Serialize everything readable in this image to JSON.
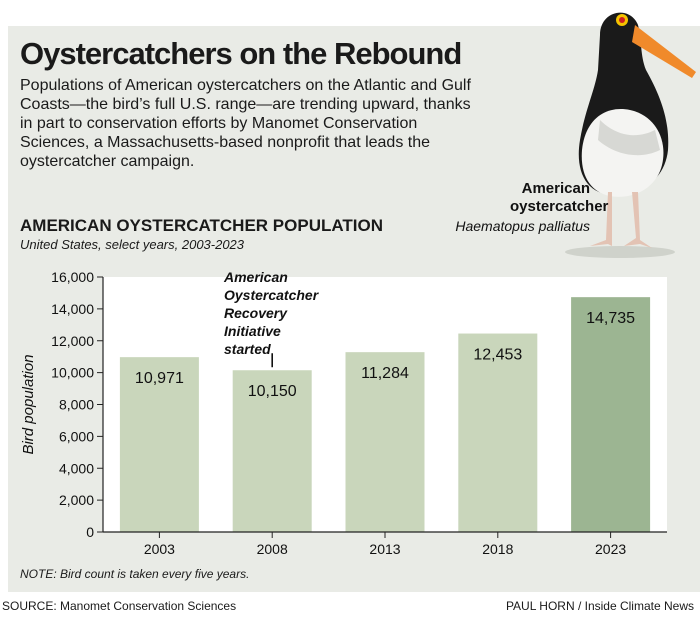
{
  "title": "Oystercatchers on the Rebound",
  "intro": "Populations of American oystercatchers on the Atlantic and Gulf Coasts—the bird’s full U.S. range—are trending upward, thanks in part to conservation efforts by Manomet Conservation Sciences, a Massachusetts-based nonprofit that leads the oystercatcher campaign.",
  "bird": {
    "common_name": "American oystercatcher",
    "scientific_name": "Haematopus palliatus"
  },
  "chart_data": {
    "type": "bar",
    "title": "AMERICAN OYSTERCATCHER POPULATION",
    "subtitle": "United States, select years, 2003-2023",
    "ylabel": "Bird population",
    "xlabel": "",
    "categories": [
      "2003",
      "2008",
      "2013",
      "2018",
      "2023"
    ],
    "values": [
      10971,
      10150,
      11284,
      12453,
      14735
    ],
    "value_labels": [
      "10,971",
      "10,150",
      "11,284",
      "12,453",
      "14,735"
    ],
    "ylim": [
      0,
      16000
    ],
    "yticks": [
      0,
      2000,
      4000,
      6000,
      8000,
      10000,
      12000,
      14000,
      16000
    ],
    "ytick_labels": [
      "0",
      "2,000",
      "4,000",
      "6,000",
      "8,000",
      "10,000",
      "12,000",
      "14,000",
      "16,000"
    ],
    "grid": false,
    "colors": {
      "bar": "#c9d6bb",
      "highlight": "#9cb592",
      "plot_bg": "#ffffff"
    },
    "highlight_index": 4,
    "annotation": {
      "category": "2008",
      "text_lines": [
        "American",
        "Oystercatcher",
        "Recovery",
        "Initiative",
        "started"
      ]
    }
  },
  "note": "NOTE: Bird count is taken every five years.",
  "source": "SOURCE: Manomet Conservation Sciences",
  "credit": "PAUL HORN / Inside Climate News"
}
